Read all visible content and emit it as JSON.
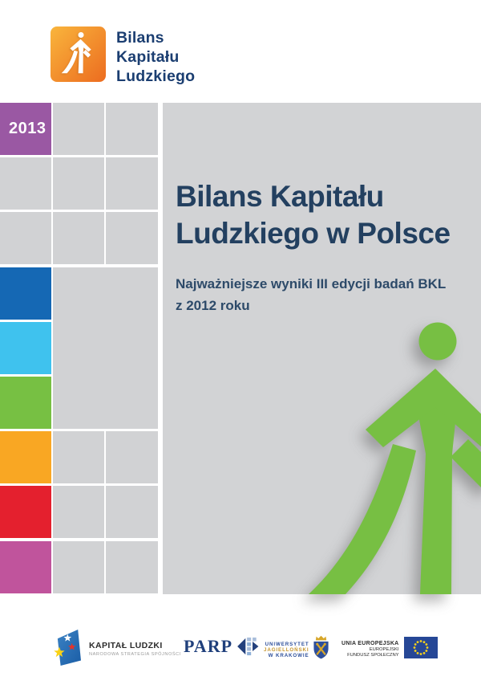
{
  "page": {
    "background": "#ffffff"
  },
  "header_logo": {
    "lines": [
      "Bilans",
      "Kapitału",
      "Ludzkiego"
    ],
    "text_color": "#1b3e71",
    "square_gradient": [
      "#f9b53c",
      "#ec6c20"
    ]
  },
  "sidebar": {
    "year": "2013",
    "colors": {
      "purple": "#9a58a3",
      "gray": "#d1d2d4",
      "blue": "#1568b4",
      "lightblue": "#3fc2ee",
      "green": "#77c043",
      "orange": "#f9a723",
      "red": "#e4202e",
      "magenta": "#c0549c"
    },
    "tiles": [
      {
        "r": 0,
        "c": 0,
        "color": "purple",
        "label": true
      },
      {
        "r": 0,
        "c": 1,
        "color": "gray"
      },
      {
        "r": 0,
        "c": 2,
        "color": "gray"
      },
      {
        "r": 1,
        "c": 0,
        "color": "gray"
      },
      {
        "r": 1,
        "c": 1,
        "color": "gray"
      },
      {
        "r": 1,
        "c": 2,
        "color": "gray"
      },
      {
        "r": 2,
        "c": 0,
        "color": "gray"
      },
      {
        "r": 2,
        "c": 1,
        "color": "gray"
      },
      {
        "r": 2,
        "c": 2,
        "color": "gray"
      },
      {
        "r": 3,
        "c": 0,
        "color": "blue"
      },
      {
        "r": 3,
        "c": 1,
        "color": "gray",
        "rs": 3,
        "cs": 2
      },
      {
        "r": 4,
        "c": 0,
        "color": "lightblue"
      },
      {
        "r": 5,
        "c": 0,
        "color": "green"
      },
      {
        "r": 6,
        "c": 0,
        "color": "orange"
      },
      {
        "r": 6,
        "c": 1,
        "color": "gray"
      },
      {
        "r": 6,
        "c": 2,
        "color": "gray"
      },
      {
        "r": 7,
        "c": 0,
        "color": "red"
      },
      {
        "r": 7,
        "c": 1,
        "color": "gray"
      },
      {
        "r": 7,
        "c": 2,
        "color": "gray"
      },
      {
        "r": 8,
        "c": 0,
        "color": "magenta"
      },
      {
        "r": 8,
        "c": 1,
        "color": "gray"
      },
      {
        "r": 8,
        "c": 2,
        "color": "gray"
      }
    ]
  },
  "main": {
    "background": "#d2d3d5",
    "title_lines": [
      "Bilans Kapitału",
      "Ludzkiego w Polsce"
    ],
    "title_color": "#234060",
    "subtitle_lines": [
      "Najważniejsze wyniki III edycji badań BKL",
      "z 2012 roku"
    ],
    "subtitle_color": "#2d4a69",
    "figure_color": "#77bf43"
  },
  "footer": {
    "kapital_ludzki": {
      "title": "KAPITAŁ LUDZKI",
      "subtitle": "NARODOWA STRATEGIA SPÓJNOŚCI"
    },
    "parp": {
      "label": "PARP"
    },
    "uniwersytet_jagiellonski": {
      "lines": [
        "UNIWERSYTET",
        "JAGIELLOŃSKI",
        "W KRAKOWIE"
      ],
      "blue": "#2d4f9b",
      "gold": "#c6952b"
    },
    "unia_europejska": {
      "lines": [
        "UNIA EUROPEJSKA",
        "EUROPEJSKI",
        "FUNDUSZ SPOŁECZNY"
      ]
    }
  }
}
